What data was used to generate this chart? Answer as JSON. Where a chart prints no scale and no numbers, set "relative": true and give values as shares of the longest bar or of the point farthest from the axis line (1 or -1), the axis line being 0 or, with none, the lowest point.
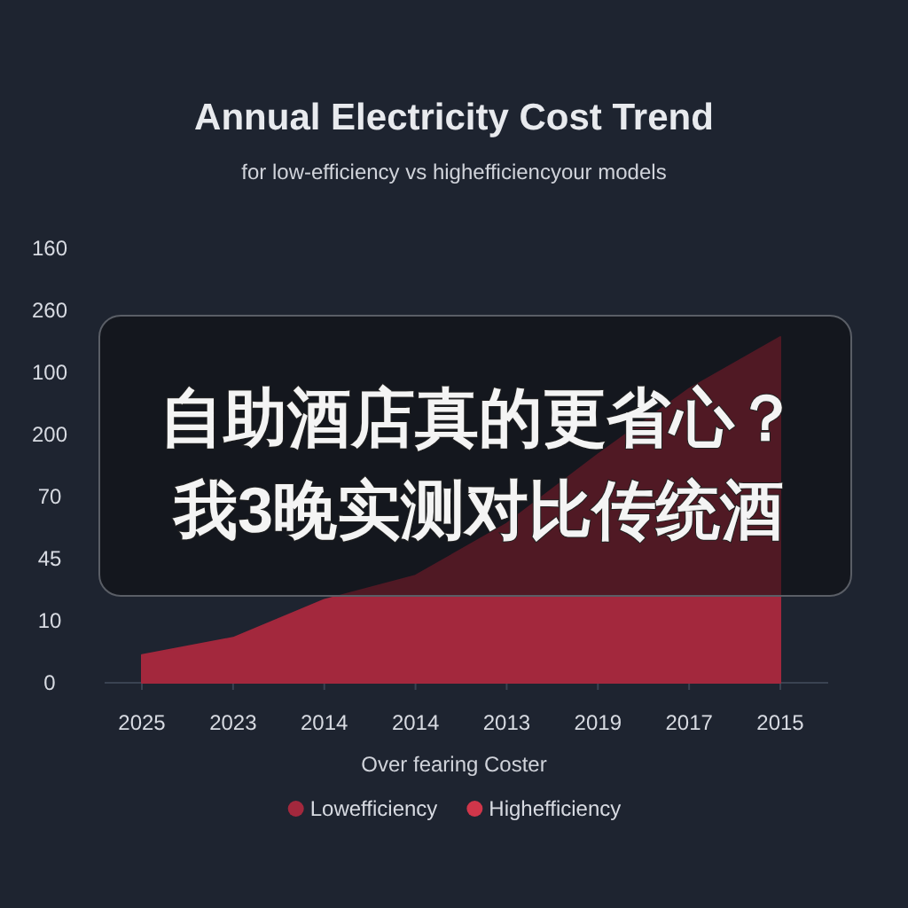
{
  "chart_data": {
    "type": "area",
    "title": "Annual Electricity Cost Trend",
    "subtitle": "for low-efficiency vs highefficiencyour models",
    "xlabel": "Over fearing Coster",
    "categories": [
      "2025",
      "2023",
      "2014",
      "2014",
      "2013",
      "2019",
      "2017",
      "2015"
    ],
    "relative": true,
    "legend": "bottom",
    "series": [
      {
        "name": "Lowefficiency",
        "color": "#a3283d",
        "values": [
          0.08,
          0.13,
          0.24,
          0.31,
          0.46,
          0.66,
          0.85,
          1
        ]
      },
      {
        "name": "Highefficiency",
        "color": "#d0364a",
        "values": [
          null,
          null,
          null,
          null,
          null,
          null,
          null,
          null
        ]
      }
    ],
    "annotations": [
      "自助酒店真的更省心？",
      "我3晚实测对比传统酒",
      "0",
      "10",
      "45",
      "70",
      "200",
      "100",
      "260",
      "160"
    ]
  }
}
